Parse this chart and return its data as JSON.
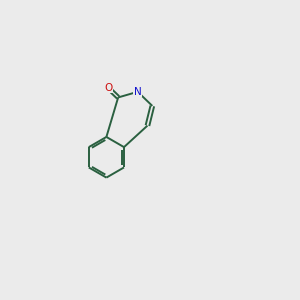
{
  "background_color": "#ebebeb",
  "bond_color": "#2a6040",
  "N_color": "#1010cc",
  "O_color": "#cc1010",
  "lw": 1.4,
  "figsize": [
    3.0,
    3.0
  ],
  "dpi": 100
}
